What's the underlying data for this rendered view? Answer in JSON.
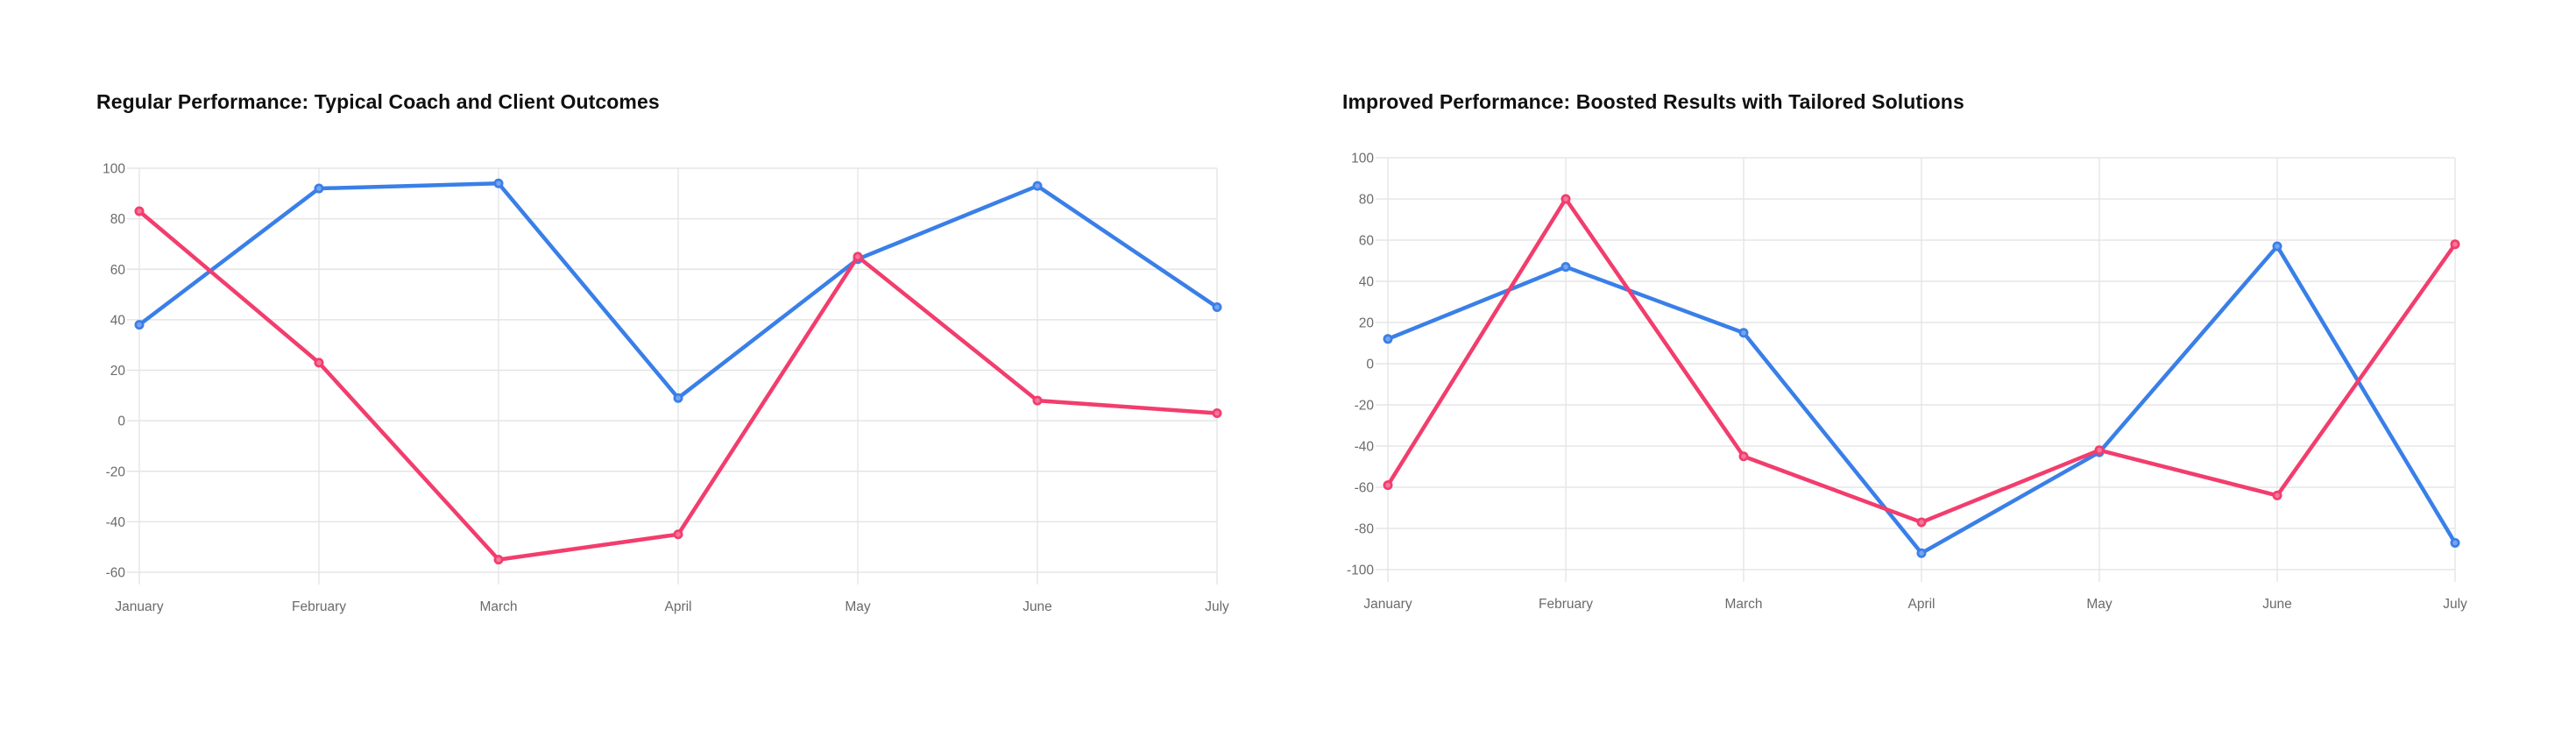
{
  "page": {
    "background": "#ffffff"
  },
  "styles": {
    "grid_color": "#e5e5e5",
    "tick_label_color": "#6b6b6b",
    "title_color": "#101010",
    "series_blue": "#3a7fe8",
    "series_pink": "#f23d6d"
  },
  "chart_data": [
    {
      "type": "line",
      "title": "Regular Performance: Typical Coach and Client Outcomes",
      "categories": [
        "January",
        "February",
        "March",
        "April",
        "May",
        "June",
        "July"
      ],
      "series": [
        {
          "color": "#3a7fe8",
          "values": [
            38,
            92,
            94,
            9,
            64,
            93,
            45
          ]
        },
        {
          "color": "#f23d6d",
          "values": [
            83,
            23,
            -55,
            -45,
            65,
            8,
            3
          ]
        }
      ],
      "xlabel": "",
      "ylabel": "",
      "ylim": [
        -60,
        100
      ],
      "ytick_step": 20,
      "ytick_labels": [
        "100",
        "80",
        "60",
        "40",
        "20",
        "0",
        "-20",
        "-40",
        "-60"
      ],
      "grid": true,
      "legend": "none",
      "markers": true
    },
    {
      "type": "line",
      "title": "Improved Performance: Boosted Results with Tailored Solutions",
      "categories": [
        "January",
        "February",
        "March",
        "April",
        "May",
        "June",
        "July"
      ],
      "series": [
        {
          "color": "#3a7fe8",
          "values": [
            12,
            47,
            15,
            -92,
            -43,
            57,
            -87
          ]
        },
        {
          "color": "#f23d6d",
          "values": [
            -59,
            80,
            -45,
            -77,
            -42,
            -64,
            58
          ]
        }
      ],
      "xlabel": "",
      "ylabel": "",
      "ylim": [
        -100,
        100
      ],
      "ytick_step": 20,
      "ytick_labels": [
        "100",
        "80",
        "60",
        "40",
        "20",
        "0",
        "-20",
        "-40",
        "-60",
        "-80",
        "-100"
      ],
      "grid": true,
      "legend": "none",
      "markers": true
    }
  ]
}
